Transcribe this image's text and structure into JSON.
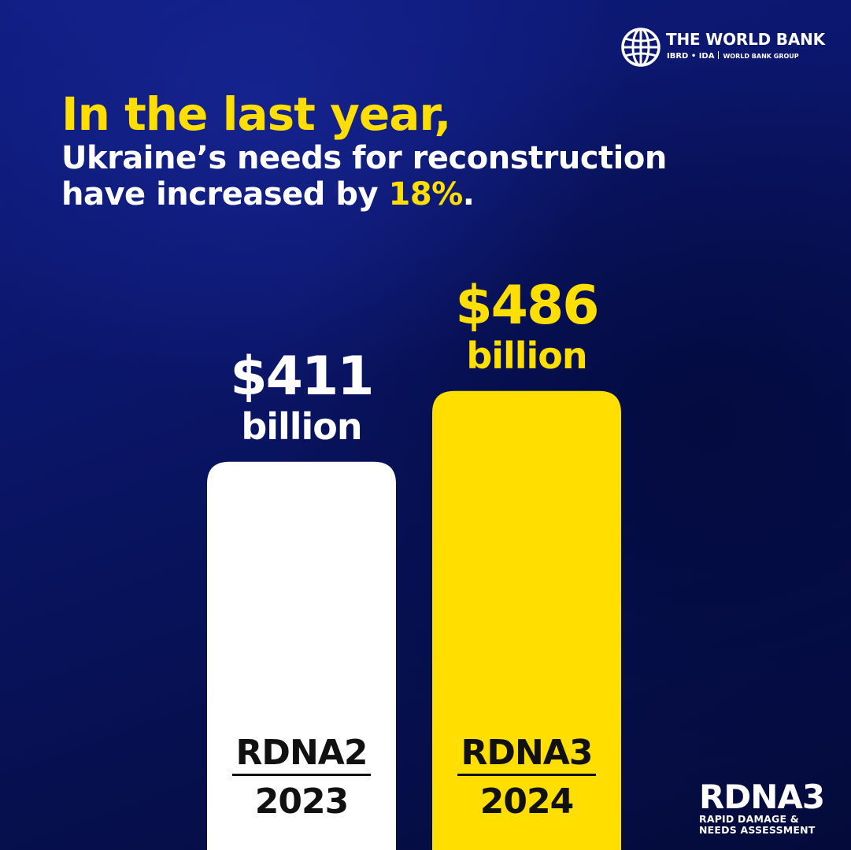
{
  "logo": {
    "name": "THE WORLD BANK",
    "sub_left": "IBRD • IDA",
    "sub_right": "WORLD BANK GROUP"
  },
  "headline": {
    "line1": "In the last year,",
    "line2": "Ukraine’s needs for reconstruction",
    "line3_prefix": "have increased by ",
    "line3_highlight": "18%",
    "line3_suffix": "."
  },
  "chart_data": {
    "type": "bar",
    "categories": [
      "RDNA2 2023",
      "RDNA3 2024"
    ],
    "values": [
      411,
      486
    ],
    "unit": "billion",
    "bars": [
      {
        "name": "RDNA2",
        "year": "2023",
        "value": 411,
        "value_label": "$411",
        "unit_label": "billion",
        "color": "#ffffff",
        "label_color": "#ffffff"
      },
      {
        "name": "RDNA3",
        "year": "2024",
        "value": 486,
        "value_label": "$486",
        "unit_label": "billion",
        "color": "#ffde00",
        "label_color": "#ffde00"
      }
    ],
    "title": "",
    "xlabel": "",
    "ylabel": "",
    "grid": false
  },
  "badge": {
    "title": "RDNA3",
    "line1": "RAPID DAMAGE &",
    "line2": "NEEDS ASSESSMENT"
  },
  "colors": {
    "background": "#0a1566",
    "accent_yellow": "#ffde00",
    "white": "#ffffff",
    "text_dark": "#111111"
  }
}
